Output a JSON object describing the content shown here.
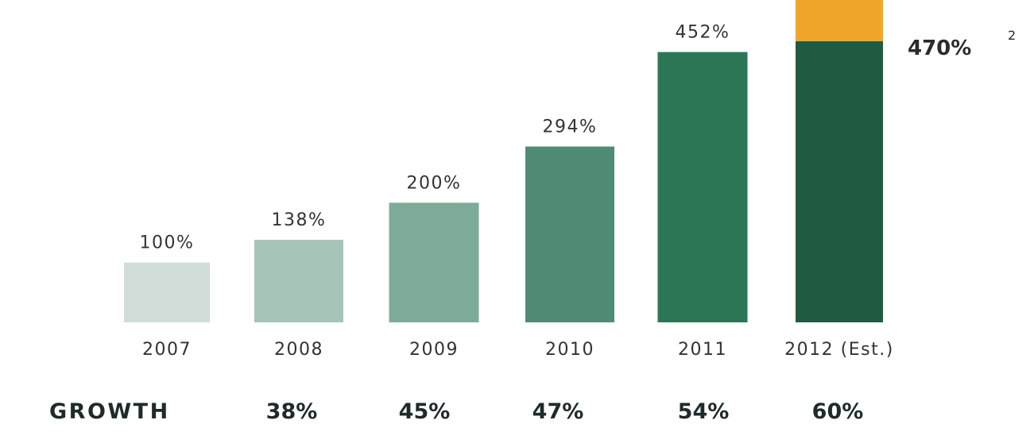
{
  "chart_data": {
    "type": "bar",
    "stacked": true,
    "categories": [
      "2007",
      "2008",
      "2009",
      "2010",
      "2011",
      "2012 (Est.)"
    ],
    "values": [
      100,
      138,
      200,
      294,
      452,
      470
    ],
    "value_labels": [
      "100%",
      "138%",
      "200%",
      "294%",
      "452%",
      "470%"
    ],
    "highlight": {
      "label": "470%",
      "superscript": "2"
    },
    "stacked_extension": {
      "category": "2012 (Est.)",
      "base": 470,
      "color": "#f0a62a"
    },
    "bar_colors": [
      "#d0ddd8",
      "#a6c4b8",
      "#7eab98",
      "#4f8c73",
      "#2a7655",
      "#205a40"
    ],
    "growth": {
      "label": "GROWTH",
      "values": [
        "38%",
        "45%",
        "47%",
        "54%",
        "60%"
      ]
    },
    "ylim": [
      0,
      470
    ],
    "grid": false,
    "xlabel": "",
    "ylabel": ""
  }
}
